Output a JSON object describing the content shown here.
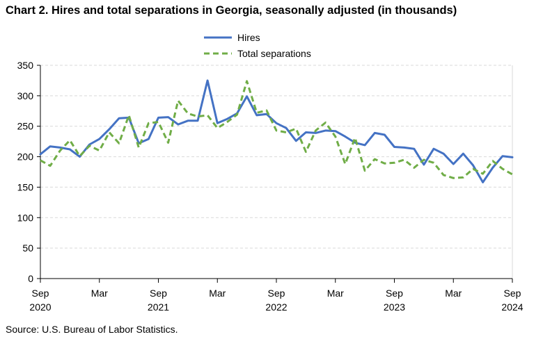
{
  "chart_data": {
    "type": "line",
    "title": "Chart 2. Hires and total separations in Georgia, seasonally adjusted (in thousands)",
    "source": "Source: U.S. Bureau of Labor Statistics.",
    "x": [
      "2020-09",
      "2020-10",
      "2020-11",
      "2020-12",
      "2021-01",
      "2021-02",
      "2021-03",
      "2021-04",
      "2021-05",
      "2021-06",
      "2021-07",
      "2021-08",
      "2021-09",
      "2021-10",
      "2021-11",
      "2021-12",
      "2022-01",
      "2022-02",
      "2022-03",
      "2022-04",
      "2022-05",
      "2022-06",
      "2022-07",
      "2022-08",
      "2022-09",
      "2022-10",
      "2022-11",
      "2022-12",
      "2023-01",
      "2023-02",
      "2023-03",
      "2023-04",
      "2023-05",
      "2023-06",
      "2023-07",
      "2023-08",
      "2023-09",
      "2023-10",
      "2023-11",
      "2023-12",
      "2024-01",
      "2024-02",
      "2024-03",
      "2024-04",
      "2024-05",
      "2024-06",
      "2024-07",
      "2024-08",
      "2024-09"
    ],
    "x_tick_labels": [
      {
        "month": "Sep",
        "year": "2020"
      },
      {
        "month": "Mar",
        "year": ""
      },
      {
        "month": "Sep",
        "year": "2021"
      },
      {
        "month": "Mar",
        "year": ""
      },
      {
        "month": "Sep",
        "year": "2022"
      },
      {
        "month": "Mar",
        "year": ""
      },
      {
        "month": "Sep",
        "year": "2023"
      },
      {
        "month": "Mar",
        "year": ""
      },
      {
        "month": "Sep",
        "year": "2024"
      }
    ],
    "ylim": [
      0,
      350
    ],
    "y_ticks": [
      0,
      50,
      100,
      150,
      200,
      250,
      300,
      350
    ],
    "grid": true,
    "legend_position": "top-center",
    "series": [
      {
        "name": "Hires",
        "color": "#4472C4",
        "style": "solid",
        "values": [
          204,
          217,
          215,
          212,
          200,
          220,
          229,
          245,
          263,
          264,
          222,
          229,
          264,
          265,
          253,
          259,
          259,
          325,
          255,
          262,
          271,
          299,
          268,
          270,
          255,
          247,
          226,
          240,
          239,
          243,
          242,
          233,
          223,
          219,
          239,
          236,
          216,
          215,
          213,
          187,
          213,
          205,
          188,
          205,
          186,
          158,
          182,
          201,
          199
        ]
      },
      {
        "name": "Total separations",
        "color": "#70AD47",
        "style": "dashed",
        "values": [
          194,
          185,
          210,
          227,
          201,
          218,
          210,
          240,
          222,
          268,
          215,
          255,
          257,
          223,
          292,
          271,
          266,
          268,
          247,
          257,
          269,
          324,
          272,
          276,
          243,
          240,
          246,
          208,
          243,
          256,
          233,
          188,
          231,
          177,
          196,
          189,
          190,
          195,
          182,
          195,
          190,
          170,
          165,
          166,
          180,
          172,
          193,
          180,
          171
        ]
      }
    ]
  }
}
